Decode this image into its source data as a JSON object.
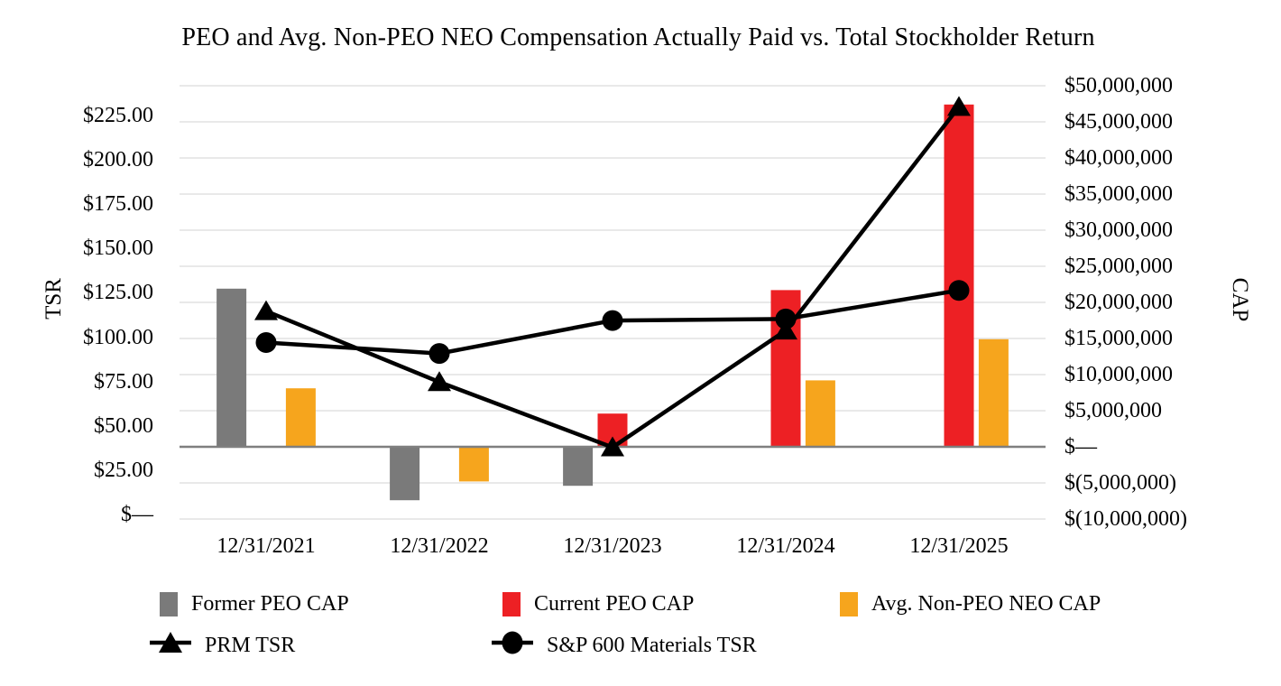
{
  "title": "PEO and Avg. Non-PEO NEO Compensation Actually Paid vs. Total Stockholder Return",
  "chart_data": {
    "type": "combo-bar-line",
    "categories": [
      "12/31/2021",
      "12/31/2022",
      "12/31/2023",
      "12/31/2024",
      "12/31/2025"
    ],
    "bar_series": [
      {
        "name": "Former PEO CAP",
        "color": "#7A7A7A",
        "axis": "CAP",
        "values": [
          21900000,
          -7400000,
          -5400000,
          null,
          null
        ]
      },
      {
        "name": "Current PEO CAP",
        "color": "#ED2024",
        "axis": "CAP",
        "values": [
          null,
          null,
          4600000,
          21700000,
          47400000
        ]
      },
      {
        "name": "Avg. Non-PEO NEO CAP",
        "color": "#F6A51D",
        "axis": "CAP",
        "values": [
          8100000,
          -4800000,
          null,
          9200000,
          14900000
        ]
      }
    ],
    "line_series": [
      {
        "name": "PRM TSR",
        "marker": "triangle",
        "color": "#000000",
        "axis": "TSR",
        "values": [
          114.7,
          74.7,
          37.9,
          103.8,
          229.9
        ]
      },
      {
        "name": "S&P 600 Materials TSR",
        "marker": "circle",
        "color": "#000000",
        "axis": "TSR",
        "values": [
          97.0,
          90.8,
          109.4,
          110.3,
          126.4
        ]
      }
    ],
    "left_axis": {
      "label": "TSR",
      "min": 0,
      "max": 225,
      "step": 25,
      "ticks": [
        "$225.00",
        "$200.00",
        "$175.00",
        "$150.00",
        "$125.00",
        "$100.00",
        "$75.00",
        "$50.00",
        "$25.00",
        "$—"
      ]
    },
    "right_axis": {
      "label": "CAP",
      "min": -10000000,
      "max": 50000000,
      "step": 5000000,
      "ticks": [
        "$50,000,000",
        "$45,000,000",
        "$40,000,000",
        "$35,000,000",
        "$30,000,000",
        "$25,000,000",
        "$20,000,000",
        "$15,000,000",
        "$10,000,000",
        "$5,000,000",
        "$—",
        "$(5,000,000)",
        "$(10,000,000)"
      ]
    },
    "grid": {
      "color": "#E2E2E2",
      "zero_line_color": "#7F7F7F",
      "on": true
    },
    "legend_position": "bottom"
  }
}
